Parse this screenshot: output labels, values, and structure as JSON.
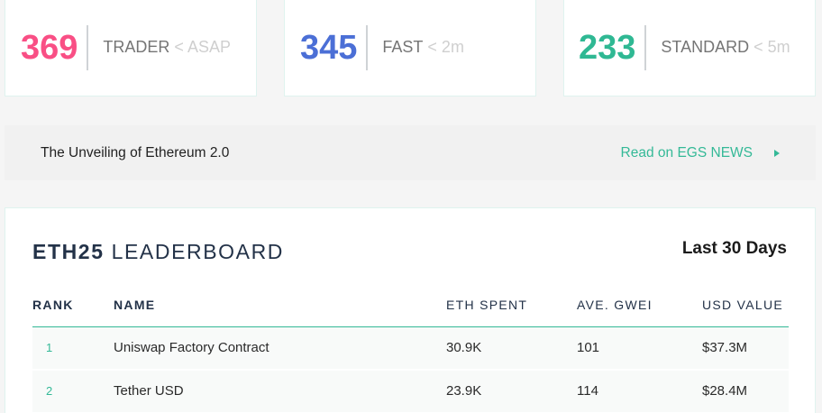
{
  "gas_cards": [
    {
      "value": "369",
      "label": "TRADER",
      "sub": "< ASAP",
      "color": "#f94f85"
    },
    {
      "value": "345",
      "label": "FAST",
      "sub": "< 2m",
      "color": "#4b6fd6"
    },
    {
      "value": "233",
      "label": "STANDARD",
      "sub": "< 5m",
      "color": "#2fb893"
    }
  ],
  "news": {
    "headline": "The Unveiling of Ethereum 2.0",
    "link_label": "Read on EGS NEWS",
    "link_color": "#34b997"
  },
  "leaderboard": {
    "title_bold": "ETH25",
    "title_rest": "LEADERBOARD",
    "period": "Last 30 Days",
    "columns": [
      "RANK",
      "NAME",
      "ETH SPENT",
      "AVE. GWEI",
      "USD VALUE"
    ],
    "rows": [
      {
        "rank": "1",
        "name": "Uniswap Factory Contract",
        "eth_spent": "30.9K",
        "ave_gwei": "101",
        "usd_value": "$37.3M"
      },
      {
        "rank": "2",
        "name": "Tether USD",
        "eth_spent": "23.9K",
        "ave_gwei": "114",
        "usd_value": "$28.4M"
      }
    ]
  }
}
